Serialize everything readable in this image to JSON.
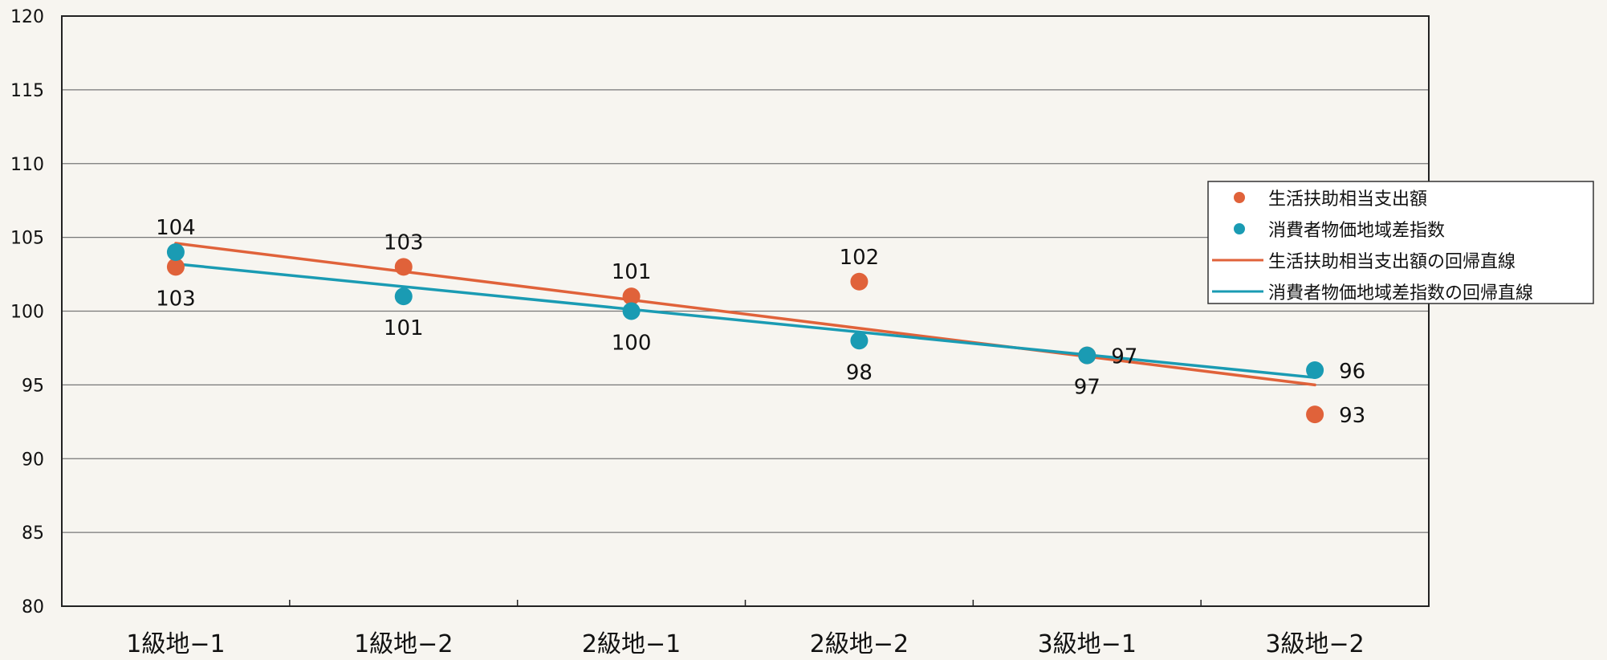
{
  "chart_data": {
    "type": "scatter",
    "categories": [
      "1級地−1",
      "1級地−2",
      "2級地−1",
      "2級地−2",
      "3級地−1",
      "3級地−2"
    ],
    "y_ticks": [
      "80",
      "85",
      "90",
      "95",
      "100",
      "105",
      "110",
      "115",
      "120"
    ],
    "ylim": [
      80,
      120
    ],
    "grid": "horizontal",
    "legend_position": "right",
    "series": [
      {
        "name": "生活扶助相当支出額",
        "kind": "points",
        "color": "#e0623a",
        "values": [
          103,
          103,
          101,
          102,
          97,
          93
        ],
        "labels": [
          "103",
          "103",
          "101",
          "102",
          "97",
          "93"
        ],
        "label_side": [
          "below",
          "above",
          "above",
          "above",
          "below",
          "right"
        ]
      },
      {
        "name": "消費者物価地域差指数",
        "kind": "points",
        "color": "#1a9bb3",
        "values": [
          104,
          101,
          100,
          98,
          97,
          96
        ],
        "labels": [
          "104",
          "101",
          "100",
          "98",
          "97",
          "96"
        ],
        "label_side": [
          "above",
          "below",
          "below",
          "below",
          "right",
          "right"
        ]
      },
      {
        "name": "生活扶助相当支出額の回帰直線",
        "kind": "line",
        "color": "#e0623a",
        "values": [
          104.6,
          102.7,
          100.8,
          98.8,
          96.9,
          95.0
        ]
      },
      {
        "name": "消費者物価地域差指数の回帰直線",
        "kind": "line",
        "color": "#1a9bb3",
        "values": [
          103.2,
          101.7,
          100.1,
          98.6,
          97.0,
          95.5
        ]
      }
    ]
  }
}
